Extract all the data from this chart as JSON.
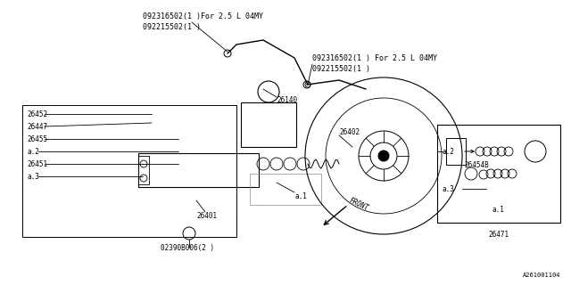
{
  "bg_color": "#ffffff",
  "line_color": "#000000",
  "part_number_code": "A261001104",
  "labels": {
    "top_left_note1": "092316502(1 )For 2.5 L 04MY",
    "top_left_note2": "092215502(1 )",
    "top_right_note1": "092316502(1 ) For 2.5 L 04MY",
    "top_right_note2": "092215502(1 )",
    "part_26140": "26140",
    "part_26452": "26452",
    "part_26447": "26447",
    "part_26455": "26455",
    "part_a2_left": "a.2",
    "part_26451": "26451",
    "part_a3_left": "a.3",
    "part_26402": "26402",
    "part_26454B": "26454B",
    "part_a1_main": "a.1",
    "part_26401": "26401",
    "part_02390B006": "02390B006(2 )",
    "part_26471": "26471",
    "part_a2_box": "a.2",
    "part_a3_box": "a.3",
    "part_a1_box": "a.1",
    "front_label": "FRONT"
  },
  "font_size_notes": 6.0,
  "font_size_label": 5.5
}
